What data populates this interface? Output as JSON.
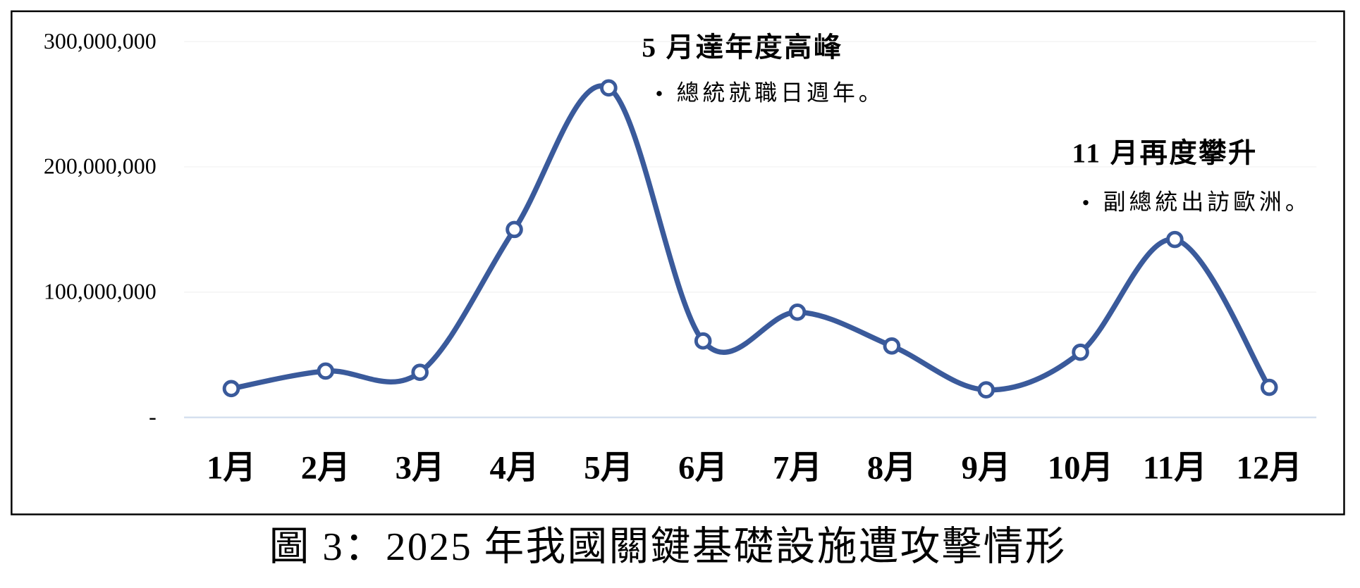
{
  "chart_data": {
    "type": "line",
    "caption": "圖 3：2025 年我國關鍵基礎設施遭攻擊情形",
    "categories": [
      "1月",
      "2月",
      "3月",
      "4月",
      "5月",
      "6月",
      "7月",
      "8月",
      "9月",
      "10月",
      "11月",
      "12月"
    ],
    "series": [
      {
        "color": "#3a5a9b",
        "values": [
          23000000,
          37000000,
          36000000,
          150000000,
          263000000,
          61000000,
          84000000,
          57000000,
          22000000,
          52000000,
          142000000,
          24000000
        ]
      }
    ],
    "ylim": [
      0,
      300000000
    ],
    "yticks": [
      {
        "value": 0,
        "label": "-"
      },
      {
        "value": 100000000,
        "label": "100,000,000"
      },
      {
        "value": 200000000,
        "label": "200,000,000"
      },
      {
        "value": 300000000,
        "label": "300,000,000"
      }
    ],
    "grid": true,
    "annotations": [
      {
        "title": "5 月達年度高峰",
        "note": "總統就職日週年。"
      },
      {
        "title": "11 月再度攀升",
        "note": "副總統出訪歐洲。"
      }
    ]
  }
}
